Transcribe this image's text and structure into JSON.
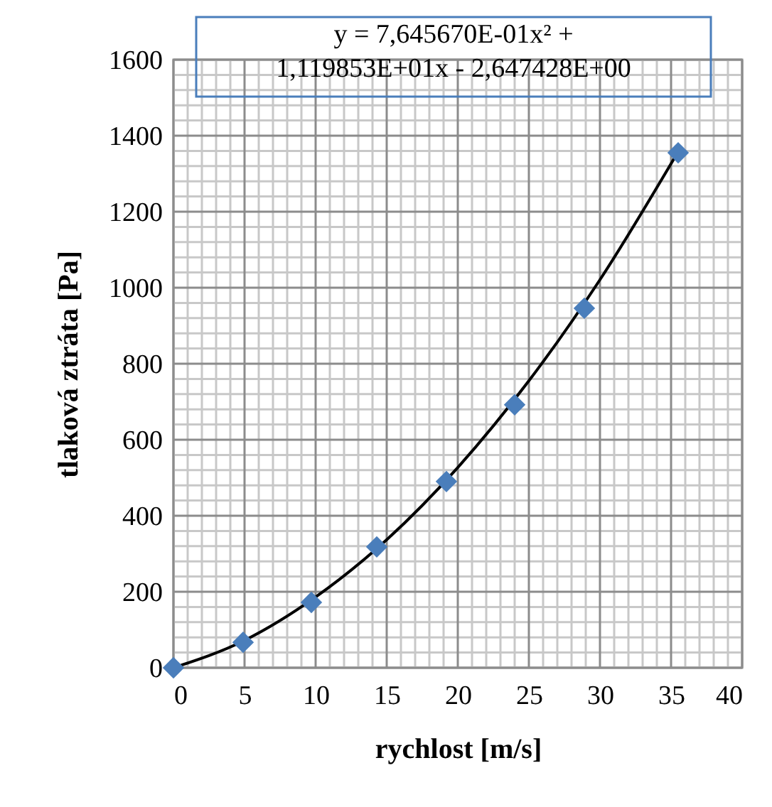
{
  "chart_data": {
    "type": "scatter",
    "xlabel": "rychlost [m/s]",
    "ylabel": "tlaková ztráta [Pa]",
    "xlim": [
      0,
      40
    ],
    "xticks": [
      0,
      5,
      10,
      15,
      20,
      25,
      30,
      35,
      40
    ],
    "ylim": [
      0,
      1600
    ],
    "yticks": [
      0,
      200,
      400,
      600,
      800,
      1000,
      1200,
      1400,
      1600
    ],
    "grid": true,
    "annotations": [
      "y = 7,645670E-01x² +\n1,119853E+01x - 2,647428E+00"
    ],
    "series": [
      {
        "color": "#4a7ebb",
        "marker": "diamond",
        "x": [
          0,
          4.9,
          9.7,
          14.3,
          19.2,
          24,
          28.9,
          35.5
        ],
        "values": [
          0,
          67,
          172,
          318,
          490,
          692,
          946,
          1355
        ]
      },
      {
        "type": "line",
        "color": "#000000",
        "line_style": "solid",
        "marker": "none",
        "x": [
          0,
          5,
          10,
          15,
          20,
          25,
          30,
          35.5
        ],
        "values": [
          0,
          72,
          186,
          337,
          527,
          755,
          1021,
          1358
        ]
      }
    ]
  }
}
